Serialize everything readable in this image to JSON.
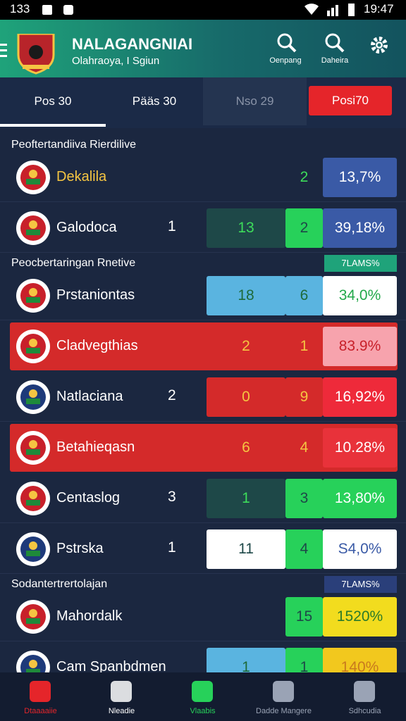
{
  "status_bar": {
    "left": "133",
    "time": "19:47"
  },
  "header": {
    "title": "NALAGANGNIAI",
    "subtitle": "Olahraoya, I Sgiun",
    "actions": [
      "Oenpang",
      "Daheira"
    ]
  },
  "tabs": [
    "Pos 30",
    "Pääs 30",
    "Nso 29",
    "Posi70"
  ],
  "list": [
    {
      "section": "Peoftertandiiva Rierdilive"
    },
    {
      "name": "Dekalila",
      "name_color": "#f5c542",
      "cells": [
        null,
        "2",
        "13,7%"
      ],
      "cell_colors": [
        null,
        null,
        "#3a5aa6"
      ],
      "text_colors": [
        null,
        "#3ddc5a",
        "#ffffff"
      ]
    },
    {
      "name": "Galodoca",
      "rank": "1",
      "cells": [
        "13",
        "2",
        "39,18%"
      ],
      "cell_colors": [
        "#1e4848",
        "#27d15a",
        "#3a5aa6"
      ],
      "text_colors": [
        "#3ddc5a",
        "#1e4848",
        "#ffffff"
      ]
    },
    {
      "section": "Peocbertaringan Rnetive",
      "tag": "7LAMS%",
      "tag_color": "#1fa37a"
    },
    {
      "name": "Prstaniontas",
      "cells": [
        "18",
        "6",
        "34,0%"
      ],
      "cell_colors": [
        "#5ab4e0",
        "#5ab4e0",
        "#ffffff"
      ],
      "text_colors": [
        "#1e6a3a",
        "#1e6a3a",
        "#22a84a"
      ]
    },
    {
      "name": "Cladvegthias",
      "color": "#d42a2a",
      "cells": [
        "2",
        "1",
        "83.9%"
      ],
      "cell_colors": [
        null,
        null,
        "#f7a3ad"
      ],
      "text_colors": [
        "#f5c542",
        "#f5c542",
        "#c8202a"
      ]
    },
    {
      "name": "Natlaciana",
      "rank": "2",
      "cells": [
        "0",
        "9",
        "16,92%"
      ],
      "cell_colors": [
        "#d42a2a",
        "#d42a2a",
        "#ee2a3a"
      ],
      "text_colors": [
        "#f5c542",
        "#f5c542",
        "#ffffff"
      ]
    },
    {
      "name": "Betahieqasn",
      "color": "#d42a2a",
      "cells": [
        "6",
        "4",
        "10.28%"
      ],
      "cell_colors": [
        null,
        null,
        "#e8323a"
      ],
      "text_colors": [
        "#f5c542",
        "#f5c542",
        "#ffffff"
      ]
    },
    {
      "name": "Centaslog",
      "rank": "3",
      "cells": [
        "1",
        "3",
        "13,80%"
      ],
      "cell_colors": [
        "#1e4848",
        "#27d15a",
        "#27d15a"
      ],
      "text_colors": [
        "#3ddc5a",
        "#1e4848",
        "#ffffff"
      ]
    },
    {
      "name": "Pstrska",
      "rank": "1",
      "cells": [
        "11",
        "4",
        "S4,0%"
      ],
      "cell_colors": [
        "#ffffff",
        "#27d15a",
        "#ffffff"
      ],
      "text_colors": [
        "#1e4848",
        "#1e4848",
        "#3a5aa6"
      ]
    },
    {
      "section": "Sodantertrertolajan",
      "tag": "7LAMS%",
      "tag_color": "#2a3f7a"
    },
    {
      "name": "Mahordalk",
      "cells": [
        null,
        "15",
        "1520%"
      ],
      "cell_colors": [
        null,
        "#27d15a",
        "#f2dc1e"
      ],
      "text_colors": [
        null,
        "#1e4848",
        "#2a7a2a"
      ]
    },
    {
      "name": "Cam Spanbdmen",
      "cells": [
        "1",
        "1",
        "140%"
      ],
      "cell_colors": [
        "#5ab4e0",
        "#27d15a",
        "#f2c81e"
      ],
      "text_colors": [
        "#1e6a3a",
        "#1e4848",
        "#c87a1e"
      ]
    }
  ],
  "nav": [
    "Dtaaaaiie",
    "Nleadie",
    "Vlaabis",
    "Dadde Mangere",
    "Sdhcudia"
  ]
}
